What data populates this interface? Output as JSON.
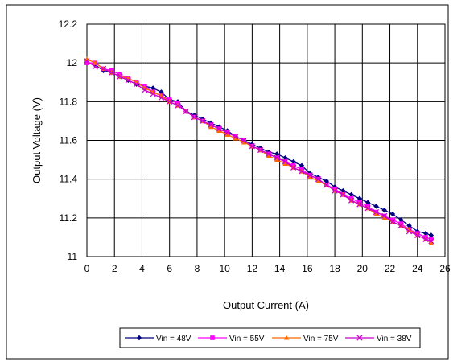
{
  "chart_data": {
    "type": "line",
    "title": "",
    "xlabel": "Output Current (A)",
    "ylabel": "Output Voltage  (V)",
    "xlim": [
      0,
      26
    ],
    "ylim": [
      11,
      12.2
    ],
    "x_ticks": [
      "0",
      "2",
      "4",
      "6",
      "8",
      "10",
      "12",
      "14",
      "16",
      "18",
      "20",
      "22",
      "24",
      "26"
    ],
    "y_ticks": [
      "11",
      "11.2",
      "11.4",
      "11.6",
      "11.8",
      "12",
      "12.2"
    ],
    "grid": true,
    "legend": "bottom",
    "x": [
      0,
      0.6,
      1.2,
      1.8,
      2.4,
      3.0,
      3.6,
      4.2,
      4.8,
      5.4,
      6.0,
      6.6,
      7.2,
      7.8,
      8.4,
      9.0,
      9.6,
      10.2,
      10.8,
      11.4,
      12.0,
      12.6,
      13.2,
      13.8,
      14.4,
      15.0,
      15.6,
      16.2,
      16.8,
      17.4,
      18.0,
      18.6,
      19.2,
      19.8,
      20.4,
      21.0,
      21.6,
      22.2,
      22.8,
      23.4,
      24.0,
      24.6,
      25.0
    ],
    "series": [
      {
        "name": "Vin = 48V",
        "color": "#000080",
        "marker": "diamond",
        "values": [
          12.0,
          11.99,
          11.96,
          11.95,
          11.93,
          11.91,
          11.89,
          11.88,
          11.87,
          11.85,
          11.81,
          11.8,
          11.75,
          11.73,
          11.71,
          11.69,
          11.67,
          11.65,
          11.62,
          11.6,
          11.58,
          11.56,
          11.54,
          11.53,
          11.51,
          11.49,
          11.47,
          11.43,
          11.41,
          11.39,
          11.36,
          11.34,
          11.32,
          11.3,
          11.28,
          11.26,
          11.24,
          11.22,
          11.19,
          11.16,
          11.13,
          11.12,
          11.11
        ]
      },
      {
        "name": "Vin = 55V",
        "color": "#ff00ff",
        "marker": "square",
        "values": [
          12.0,
          12.0,
          11.97,
          11.96,
          11.94,
          11.92,
          11.9,
          11.88,
          11.85,
          11.83,
          11.81,
          11.79,
          11.75,
          11.72,
          11.7,
          11.68,
          11.66,
          11.64,
          11.62,
          11.6,
          11.57,
          11.55,
          11.53,
          11.51,
          11.49,
          11.47,
          11.45,
          11.42,
          11.4,
          11.37,
          11.35,
          11.32,
          11.3,
          11.28,
          11.26,
          11.23,
          11.21,
          11.19,
          11.17,
          11.14,
          11.12,
          11.1,
          11.09
        ]
      },
      {
        "name": "Vin = 75V",
        "color": "#ff6600",
        "marker": "triangle",
        "values": [
          12.02,
          12.0,
          11.97,
          11.95,
          11.93,
          11.92,
          11.9,
          11.87,
          11.85,
          11.83,
          11.8,
          11.78,
          11.75,
          11.72,
          11.7,
          11.67,
          11.65,
          11.63,
          11.61,
          11.59,
          11.57,
          11.55,
          11.52,
          11.5,
          11.48,
          11.46,
          11.44,
          11.41,
          11.39,
          11.37,
          11.34,
          11.32,
          11.29,
          11.27,
          11.25,
          11.22,
          11.2,
          11.18,
          11.16,
          11.14,
          11.11,
          11.09,
          11.07
        ]
      },
      {
        "name": "Vin = 38V",
        "color": "#cc00cc",
        "marker": "x",
        "values": [
          12.01,
          11.98,
          11.97,
          11.95,
          11.93,
          11.91,
          11.89,
          11.86,
          11.84,
          11.82,
          11.8,
          11.78,
          11.75,
          11.72,
          11.7,
          11.68,
          11.66,
          11.64,
          11.62,
          11.6,
          11.57,
          11.55,
          11.53,
          11.51,
          11.49,
          11.46,
          11.44,
          11.42,
          11.4,
          11.37,
          11.34,
          11.32,
          11.29,
          11.27,
          11.25,
          11.23,
          11.21,
          11.18,
          11.16,
          11.13,
          11.11,
          11.09,
          11.08
        ]
      }
    ]
  }
}
